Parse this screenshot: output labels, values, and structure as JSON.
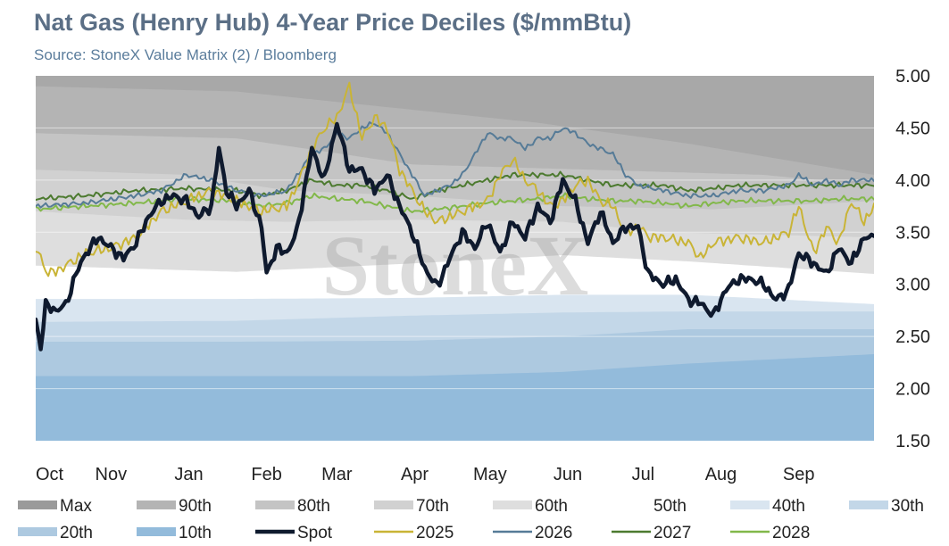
{
  "header": {
    "title": "Nat Gas (Henry Hub) 4-Year Price Deciles ($/mmBtu)",
    "subtitle": "Source: StoneX Value Matrix (2) / Bloomberg",
    "watermark": "StoneX"
  },
  "chart_data": {
    "type": "area",
    "xlabel": "",
    "ylabel": "",
    "ylim": [
      1.5,
      5.0
    ],
    "y_ticks": [
      "5.00",
      "4.50",
      "4.00",
      "3.50",
      "3.00",
      "2.50",
      "2.00",
      "1.50"
    ],
    "x_ticks": [
      "Oct",
      "Nov",
      "Jan",
      "Feb",
      "Mar",
      "Apr",
      "May",
      "Jun",
      "Jul",
      "Aug",
      "Sep"
    ],
    "x_tick_pos": [
      0,
      30,
      61,
      92,
      120,
      151,
      181,
      212,
      242,
      273,
      304
    ],
    "x_range": [
      0,
      334
    ],
    "y_axis_side": "right",
    "grid": true,
    "legend_position": "bottom",
    "bands": [
      {
        "name": "Max",
        "color": "#a8a8a8",
        "knots": [
          [
            0,
            5.0
          ],
          [
            334,
            5.0
          ]
        ]
      },
      {
        "name": "90th",
        "color": "#b4b4b4",
        "knots": [
          [
            0,
            4.9
          ],
          [
            80,
            4.85
          ],
          [
            200,
            4.55
          ],
          [
            260,
            4.35
          ],
          [
            334,
            4.05
          ]
        ]
      },
      {
        "name": "80th",
        "color": "#c4c4c4",
        "knots": [
          [
            0,
            4.45
          ],
          [
            80,
            4.4
          ],
          [
            150,
            4.15
          ],
          [
            220,
            4.1
          ],
          [
            290,
            4.05
          ],
          [
            334,
            3.95
          ]
        ]
      },
      {
        "name": "70th",
        "color": "#d1d1d1",
        "knots": [
          [
            0,
            4.1
          ],
          [
            60,
            4.05
          ],
          [
            100,
            3.9
          ],
          [
            150,
            3.85
          ],
          [
            210,
            3.75
          ],
          [
            270,
            3.72
          ],
          [
            334,
            3.8
          ]
        ]
      },
      {
        "name": "60th",
        "color": "#dedede",
        "knots": [
          [
            0,
            3.7
          ],
          [
            60,
            3.62
          ],
          [
            100,
            3.6
          ],
          [
            150,
            3.62
          ],
          [
            210,
            3.6
          ],
          [
            250,
            3.5
          ],
          [
            334,
            3.45
          ]
        ]
      },
      {
        "name": "50th",
        "color": "#ffffff",
        "knots": [
          [
            0,
            3.18
          ],
          [
            80,
            3.12
          ],
          [
            150,
            3.2
          ],
          [
            210,
            3.28
          ],
          [
            260,
            3.22
          ],
          [
            334,
            3.1
          ]
        ]
      },
      {
        "name": "40th",
        "color": "#d9e5f0",
        "knots": [
          [
            0,
            2.86
          ],
          [
            80,
            2.86
          ],
          [
            150,
            2.87
          ],
          [
            210,
            2.9
          ],
          [
            260,
            2.9
          ],
          [
            334,
            2.81
          ]
        ]
      },
      {
        "name": "30th",
        "color": "#c3d7e8",
        "knots": [
          [
            0,
            2.64
          ],
          [
            80,
            2.65
          ],
          [
            150,
            2.7
          ],
          [
            210,
            2.73
          ],
          [
            260,
            2.74
          ],
          [
            334,
            2.74
          ]
        ]
      },
      {
        "name": "20th",
        "color": "#adc9e0",
        "knots": [
          [
            0,
            2.45
          ],
          [
            80,
            2.45
          ],
          [
            150,
            2.46
          ],
          [
            210,
            2.5
          ],
          [
            260,
            2.57
          ],
          [
            334,
            2.57
          ]
        ]
      },
      {
        "name": "10th",
        "color": "#93bbdb",
        "knots": [
          [
            0,
            2.12
          ],
          [
            80,
            2.12
          ],
          [
            150,
            2.12
          ],
          [
            210,
            2.16
          ],
          [
            260,
            2.24
          ],
          [
            334,
            2.33
          ]
        ]
      }
    ],
    "series": [
      {
        "name": "Spot",
        "color": "#0f1a2e",
        "width": 4.5,
        "knots": [
          [
            0,
            2.65
          ],
          [
            2,
            2.4
          ],
          [
            4,
            2.8
          ],
          [
            8,
            2.75
          ],
          [
            12,
            2.8
          ],
          [
            16,
            3.1
          ],
          [
            20,
            3.3
          ],
          [
            25,
            3.45
          ],
          [
            30,
            3.35
          ],
          [
            35,
            3.25
          ],
          [
            40,
            3.4
          ],
          [
            45,
            3.65
          ],
          [
            50,
            3.8
          ],
          [
            55,
            3.85
          ],
          [
            60,
            3.8
          ],
          [
            65,
            3.65
          ],
          [
            70,
            3.75
          ],
          [
            73,
            4.3
          ],
          [
            76,
            3.9
          ],
          [
            80,
            3.75
          ],
          [
            85,
            3.9
          ],
          [
            90,
            3.55
          ],
          [
            92,
            3.1
          ],
          [
            96,
            3.35
          ],
          [
            100,
            3.3
          ],
          [
            104,
            3.5
          ],
          [
            110,
            4.3
          ],
          [
            115,
            4.0
          ],
          [
            120,
            4.55
          ],
          [
            125,
            4.1
          ],
          [
            130,
            4.1
          ],
          [
            135,
            3.9
          ],
          [
            140,
            4.05
          ],
          [
            145,
            3.75
          ],
          [
            150,
            3.5
          ],
          [
            155,
            3.15
          ],
          [
            160,
            2.98
          ],
          [
            165,
            3.25
          ],
          [
            170,
            3.5
          ],
          [
            175,
            3.35
          ],
          [
            180,
            3.6
          ],
          [
            185,
            3.3
          ],
          [
            190,
            3.6
          ],
          [
            195,
            3.45
          ],
          [
            200,
            3.75
          ],
          [
            205,
            3.6
          ],
          [
            210,
            4.0
          ],
          [
            215,
            3.8
          ],
          [
            220,
            3.4
          ],
          [
            225,
            3.7
          ],
          [
            230,
            3.4
          ],
          [
            235,
            3.55
          ],
          [
            240,
            3.55
          ],
          [
            244,
            3.1
          ],
          [
            250,
            3.0
          ],
          [
            255,
            3.05
          ],
          [
            260,
            2.85
          ],
          [
            265,
            2.82
          ],
          [
            270,
            2.7
          ],
          [
            275,
            2.95
          ],
          [
            280,
            3.05
          ],
          [
            285,
            3.05
          ],
          [
            290,
            3.0
          ],
          [
            295,
            2.85
          ],
          [
            300,
            2.95
          ],
          [
            304,
            3.3
          ],
          [
            310,
            3.2
          ],
          [
            315,
            3.1
          ],
          [
            320,
            3.35
          ],
          [
            325,
            3.2
          ],
          [
            330,
            3.45
          ],
          [
            334,
            3.45
          ]
        ]
      },
      {
        "name": "2025",
        "color": "#c9b436",
        "width": 2,
        "knots": [
          [
            0,
            3.35
          ],
          [
            5,
            3.1
          ],
          [
            10,
            3.15
          ],
          [
            20,
            3.3
          ],
          [
            30,
            3.35
          ],
          [
            40,
            3.45
          ],
          [
            50,
            3.7
          ],
          [
            60,
            3.8
          ],
          [
            70,
            3.9
          ],
          [
            80,
            3.8
          ],
          [
            90,
            3.7
          ],
          [
            100,
            3.75
          ],
          [
            105,
            4.0
          ],
          [
            110,
            4.3
          ],
          [
            115,
            4.5
          ],
          [
            120,
            4.6
          ],
          [
            125,
            4.9
          ],
          [
            130,
            4.4
          ],
          [
            135,
            4.6
          ],
          [
            140,
            4.5
          ],
          [
            145,
            4.1
          ],
          [
            150,
            3.9
          ],
          [
            155,
            3.7
          ],
          [
            160,
            3.6
          ],
          [
            170,
            3.7
          ],
          [
            180,
            3.8
          ],
          [
            185,
            4.05
          ],
          [
            190,
            4.2
          ],
          [
            195,
            4.0
          ],
          [
            200,
            3.9
          ],
          [
            205,
            3.75
          ],
          [
            210,
            3.8
          ],
          [
            215,
            3.95
          ],
          [
            220,
            4.0
          ],
          [
            225,
            3.8
          ],
          [
            230,
            3.75
          ],
          [
            235,
            3.5
          ],
          [
            240,
            3.55
          ],
          [
            245,
            3.45
          ],
          [
            250,
            3.45
          ],
          [
            260,
            3.4
          ],
          [
            265,
            3.25
          ],
          [
            270,
            3.4
          ],
          [
            280,
            3.45
          ],
          [
            290,
            3.4
          ],
          [
            300,
            3.5
          ],
          [
            304,
            3.75
          ],
          [
            310,
            3.3
          ],
          [
            315,
            3.55
          ],
          [
            320,
            3.4
          ],
          [
            325,
            3.8
          ],
          [
            330,
            3.6
          ],
          [
            334,
            3.75
          ]
        ]
      },
      {
        "name": "2026",
        "color": "#567b97",
        "width": 2,
        "knots": [
          [
            0,
            3.75
          ],
          [
            20,
            3.78
          ],
          [
            40,
            3.85
          ],
          [
            50,
            3.9
          ],
          [
            60,
            4.05
          ],
          [
            70,
            4.0
          ],
          [
            80,
            3.9
          ],
          [
            90,
            3.85
          ],
          [
            100,
            3.9
          ],
          [
            110,
            4.25
          ],
          [
            115,
            4.3
          ],
          [
            120,
            4.45
          ],
          [
            125,
            4.4
          ],
          [
            130,
            4.5
          ],
          [
            135,
            4.55
          ],
          [
            140,
            4.45
          ],
          [
            145,
            4.25
          ],
          [
            150,
            4.05
          ],
          [
            155,
            3.85
          ],
          [
            160,
            3.9
          ],
          [
            165,
            3.95
          ],
          [
            170,
            4.05
          ],
          [
            175,
            4.25
          ],
          [
            180,
            4.45
          ],
          [
            185,
            4.4
          ],
          [
            190,
            4.4
          ],
          [
            195,
            4.3
          ],
          [
            200,
            4.4
          ],
          [
            205,
            4.4
          ],
          [
            210,
            4.5
          ],
          [
            215,
            4.45
          ],
          [
            220,
            4.35
          ],
          [
            225,
            4.3
          ],
          [
            230,
            4.25
          ],
          [
            235,
            4.05
          ],
          [
            240,
            3.95
          ],
          [
            250,
            3.9
          ],
          [
            260,
            3.85
          ],
          [
            270,
            3.85
          ],
          [
            280,
            3.9
          ],
          [
            290,
            3.9
          ],
          [
            300,
            3.95
          ],
          [
            304,
            4.05
          ],
          [
            310,
            3.95
          ],
          [
            315,
            4.0
          ],
          [
            320,
            3.95
          ],
          [
            325,
            4.0
          ],
          [
            334,
            4.0
          ]
        ]
      },
      {
        "name": "2027",
        "color": "#4c7a2f",
        "width": 2,
        "knots": [
          [
            0,
            3.82
          ],
          [
            20,
            3.85
          ],
          [
            40,
            3.9
          ],
          [
            60,
            3.92
          ],
          [
            80,
            3.9
          ],
          [
            90,
            3.85
          ],
          [
            100,
            3.9
          ],
          [
            110,
            4.0
          ],
          [
            120,
            3.95
          ],
          [
            130,
            3.95
          ],
          [
            140,
            3.9
          ],
          [
            150,
            3.82
          ],
          [
            160,
            3.9
          ],
          [
            170,
            3.95
          ],
          [
            180,
            4.0
          ],
          [
            190,
            4.05
          ],
          [
            200,
            4.05
          ],
          [
            210,
            4.05
          ],
          [
            220,
            4.0
          ],
          [
            230,
            3.95
          ],
          [
            240,
            3.95
          ],
          [
            250,
            3.95
          ],
          [
            260,
            3.9
          ],
          [
            270,
            3.92
          ],
          [
            280,
            3.95
          ],
          [
            290,
            3.95
          ],
          [
            300,
            3.95
          ],
          [
            310,
            3.95
          ],
          [
            320,
            3.95
          ],
          [
            334,
            3.95
          ]
        ]
      },
      {
        "name": "2028",
        "color": "#82b84a",
        "width": 2,
        "knots": [
          [
            0,
            3.72
          ],
          [
            20,
            3.75
          ],
          [
            40,
            3.78
          ],
          [
            60,
            3.82
          ],
          [
            80,
            3.8
          ],
          [
            90,
            3.75
          ],
          [
            100,
            3.78
          ],
          [
            110,
            3.85
          ],
          [
            120,
            3.82
          ],
          [
            130,
            3.8
          ],
          [
            140,
            3.75
          ],
          [
            150,
            3.7
          ],
          [
            160,
            3.72
          ],
          [
            170,
            3.75
          ],
          [
            180,
            3.78
          ],
          [
            190,
            3.8
          ],
          [
            200,
            3.82
          ],
          [
            210,
            3.85
          ],
          [
            220,
            3.82
          ],
          [
            230,
            3.8
          ],
          [
            240,
            3.8
          ],
          [
            250,
            3.78
          ],
          [
            260,
            3.75
          ],
          [
            270,
            3.78
          ],
          [
            280,
            3.8
          ],
          [
            290,
            3.8
          ],
          [
            300,
            3.8
          ],
          [
            310,
            3.8
          ],
          [
            320,
            3.82
          ],
          [
            334,
            3.82
          ]
        ]
      }
    ]
  }
}
